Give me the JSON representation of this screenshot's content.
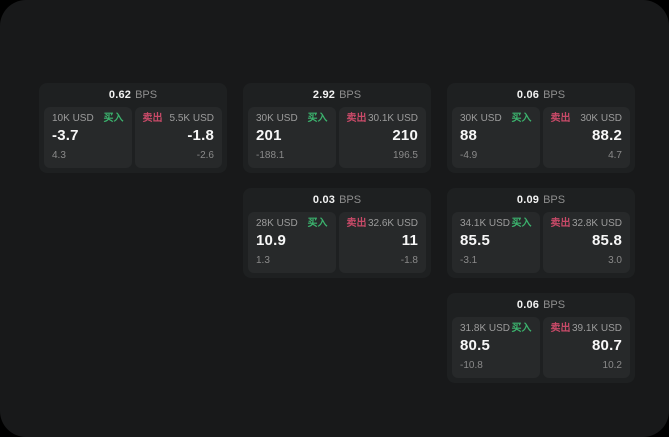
{
  "labels": {
    "buy": "买入",
    "sell": "卖出",
    "bps_unit": "BPS"
  },
  "colors": {
    "buy": "#3cb46e",
    "sell": "#c84a68",
    "window_background": "#18191a",
    "card_background": "#1e2021",
    "panel_background": "#27292a"
  },
  "cards": [
    {
      "bps": "0.62",
      "buy": {
        "amount": "10K USD",
        "value": "-3.7",
        "delta": "4.3"
      },
      "sell": {
        "amount": "5.5K USD",
        "value": "-1.8",
        "delta": "-2.6"
      }
    },
    {
      "bps": "2.92",
      "buy": {
        "amount": "30K USD",
        "value": "201",
        "delta": "-188.1"
      },
      "sell": {
        "amount": "30.1K USD",
        "value": "210",
        "delta": "196.5"
      }
    },
    {
      "bps": "0.06",
      "buy": {
        "amount": "30K USD",
        "value": "88",
        "delta": "-4.9"
      },
      "sell": {
        "amount": "30K USD",
        "value": "88.2",
        "delta": "4.7"
      }
    },
    {
      "bps": "0.03",
      "buy": {
        "amount": "28K USD",
        "value": "10.9",
        "delta": "1.3"
      },
      "sell": {
        "amount": "32.6K USD",
        "value": "11",
        "delta": "-1.8"
      }
    },
    {
      "bps": "0.09",
      "buy": {
        "amount": "34.1K USD",
        "value": "85.5",
        "delta": "-3.1"
      },
      "sell": {
        "amount": "32.8K USD",
        "value": "85.8",
        "delta": "3.0"
      }
    },
    {
      "bps": "0.06",
      "buy": {
        "amount": "31.8K USD",
        "value": "80.5",
        "delta": "-10.8"
      },
      "sell": {
        "amount": "39.1K USD",
        "value": "80.7",
        "delta": "10.2"
      }
    }
  ]
}
